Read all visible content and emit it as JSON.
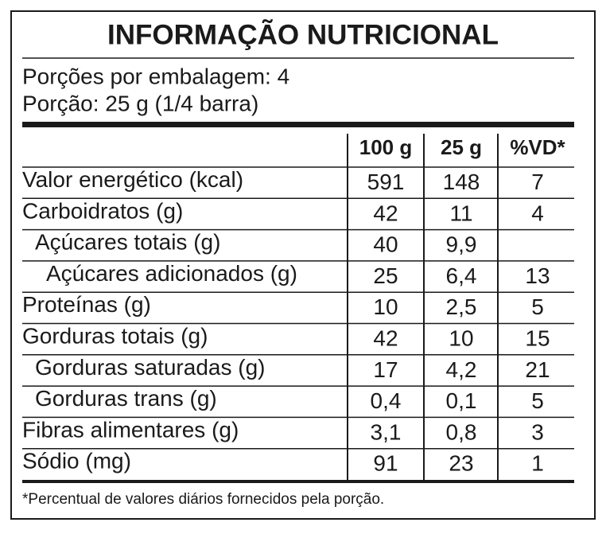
{
  "title": "INFORMAÇÃO NUTRICIONAL",
  "servings": [
    "Porções por embalagem: 4",
    "Porção: 25 g (1/4 barra)"
  ],
  "table": {
    "header": [
      "100 g",
      "25 g",
      "%VD*"
    ],
    "rows": [
      [
        "Valor energético (kcal)",
        "591",
        "148",
        "7"
      ],
      [
        "Carboidratos (g)",
        "42",
        "11",
        "4"
      ],
      [
        "Açúcares totais (g)",
        "40",
        "9,9",
        null
      ],
      [
        "Açúcares adicionados (g)",
        "25",
        "6,4",
        "13"
      ],
      [
        "Proteínas (g)",
        "10",
        "2,5",
        "5"
      ],
      [
        "Gorduras totais (g)",
        "42",
        "10",
        "15"
      ],
      [
        "Gorduras saturadas (g)",
        "17",
        "4,2",
        "21"
      ],
      [
        "Gorduras trans (g)",
        "0,4",
        "0,1",
        "5"
      ],
      [
        "Fibras alimentares (g)",
        "3,1",
        "0,8",
        "3"
      ],
      [
        "Sódio (mg)",
        "91",
        "23",
        "1"
      ]
    ]
  },
  "footnote": "*Percentual de valores diários fornecidos pela porção."
}
